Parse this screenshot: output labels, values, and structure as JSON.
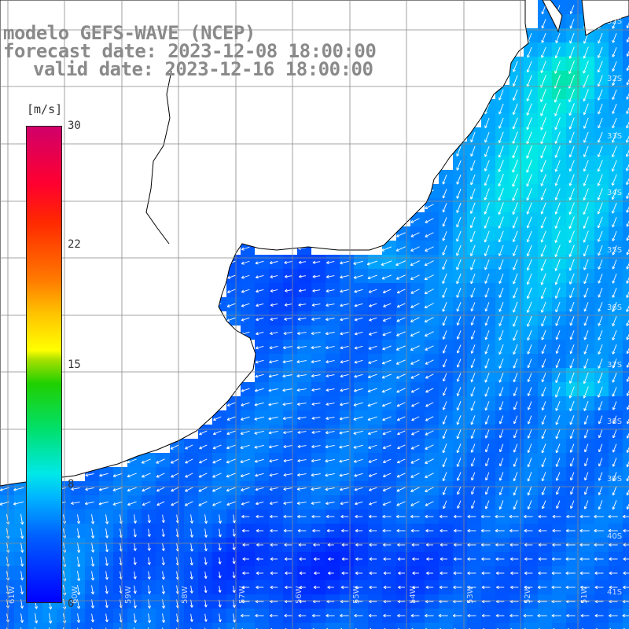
{
  "title": {
    "line1": "modelo GEFS-WAVE (NCEP)",
    "line2": "forecast date: 2023-12-08 18:00:00",
    "line3": "valid date: 2023-12-16 18:00:00"
  },
  "colorbar": {
    "unit": "[m/s]",
    "ticks": [
      "30",
      "22",
      "15",
      "8",
      "0"
    ],
    "tick_values": [
      30,
      22,
      15,
      8,
      0
    ],
    "min": 0,
    "max": 30,
    "colors": [
      "#0000ff",
      "#00b4ff",
      "#00e8e8",
      "#20d000",
      "#ffff00",
      "#ff7800",
      "#ff0030",
      "#d0006a"
    ]
  },
  "map": {
    "land_color": "#ffffff",
    "coast_color": "#000000",
    "grid_color": "#888888",
    "lat_labels": [
      "32S",
      "33S",
      "34S",
      "35S",
      "36S",
      "37S",
      "38S",
      "39S",
      "40S",
      "41S"
    ],
    "lon_labels": [
      "61W",
      "60W",
      "59W",
      "58W",
      "57W",
      "56W",
      "55W",
      "54W",
      "53W",
      "52W",
      "51W"
    ]
  }
}
